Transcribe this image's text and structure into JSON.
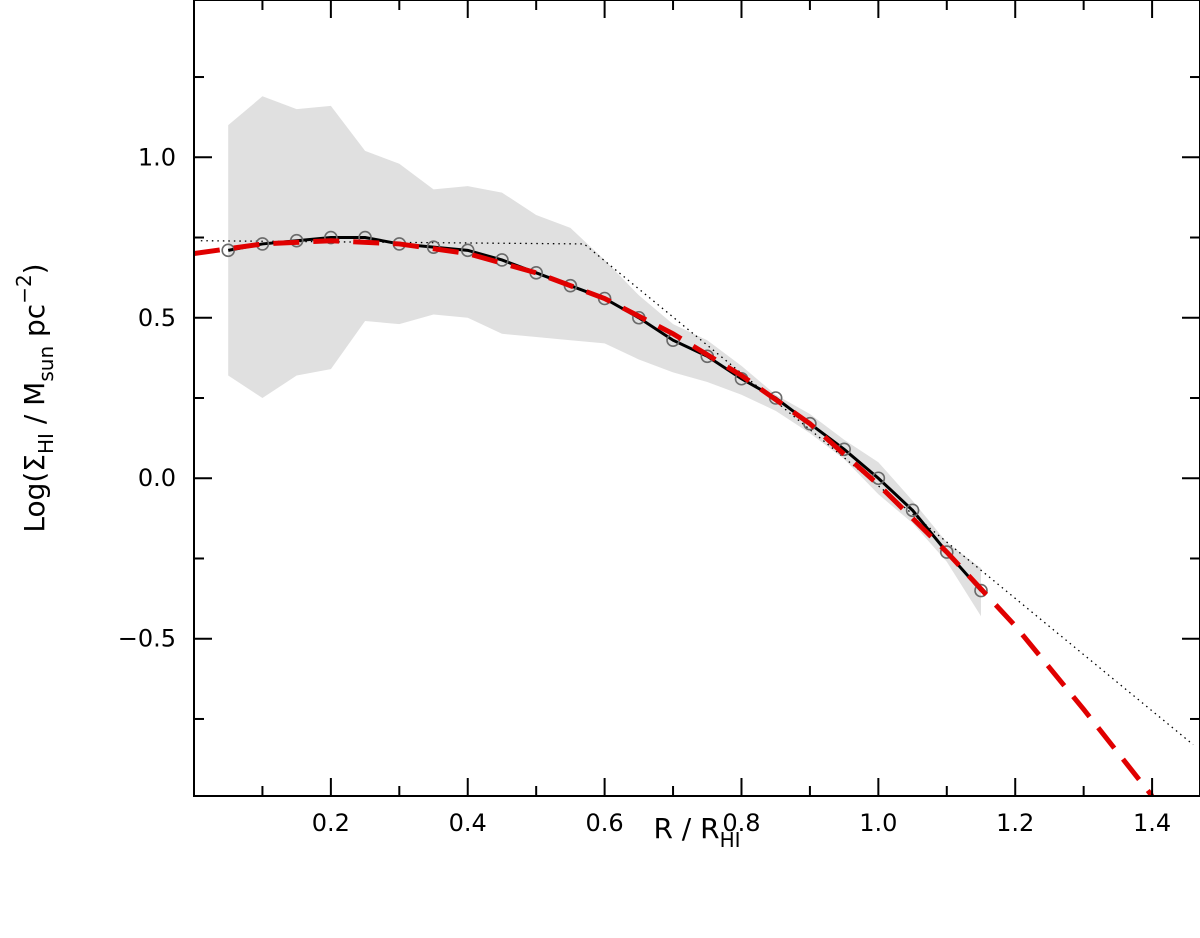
{
  "chart_data": {
    "type": "line",
    "title": "",
    "xlabel": {
      "main": "R / R",
      "sub": "HI"
    },
    "ylabel": {
      "prefix": "Log(Σ",
      "sub1": "HI",
      "mid": " / M",
      "sub2": "sun",
      "suffix": " pc",
      "sup": "−2",
      "end": ")"
    },
    "xlim": [
      0.0,
      1.47
    ],
    "ylim": [
      -0.99,
      1.49
    ],
    "x_ticks": [
      0.2,
      0.4,
      0.6,
      0.8,
      1.0,
      1.2,
      1.4
    ],
    "x_tick_labels": [
      "0.2",
      "0.4",
      "0.6",
      "0.8",
      "1.0",
      "1.2",
      "1.4"
    ],
    "x_minor_ticks": [
      0.1,
      0.3,
      0.5,
      0.7,
      0.9,
      1.1,
      1.3
    ],
    "y_ticks": [
      1.0,
      0.5,
      0.0,
      -0.5
    ],
    "y_tick_labels": [
      "1.0",
      "0.5",
      "0.0",
      "−0.5"
    ],
    "y_minor_ticks": [
      1.25,
      0.75,
      0.25,
      -0.25,
      -0.75
    ],
    "grid": false,
    "colors": {
      "band": "#e0e0e0",
      "median": "#000000",
      "points": "#6a6a6a",
      "fit": "#e00000",
      "dotted": "#000000"
    },
    "series": [
      {
        "style": "shaded-band",
        "x": [
          0.05,
          0.1,
          0.15,
          0.2,
          0.25,
          0.3,
          0.35,
          0.4,
          0.45,
          0.5,
          0.55,
          0.6,
          0.65,
          0.7,
          0.75,
          0.8,
          0.85,
          0.9,
          0.95,
          1.0,
          1.05,
          1.1,
          1.15
        ],
        "upper": [
          1.1,
          1.19,
          1.15,
          1.16,
          1.02,
          0.98,
          0.9,
          0.91,
          0.89,
          0.82,
          0.78,
          0.68,
          0.57,
          0.48,
          0.43,
          0.35,
          0.26,
          0.2,
          0.12,
          0.05,
          -0.07,
          -0.2,
          -0.28
        ],
        "lower": [
          0.32,
          0.25,
          0.32,
          0.34,
          0.49,
          0.48,
          0.51,
          0.5,
          0.45,
          0.44,
          0.43,
          0.42,
          0.37,
          0.33,
          0.3,
          0.26,
          0.21,
          0.14,
          0.06,
          -0.05,
          -0.14,
          -0.26,
          -0.43
        ]
      },
      {
        "style": "line-with-markers",
        "x": [
          0.05,
          0.1,
          0.15,
          0.2,
          0.25,
          0.3,
          0.35,
          0.4,
          0.45,
          0.5,
          0.55,
          0.6,
          0.65,
          0.7,
          0.75,
          0.8,
          0.85,
          0.9,
          0.95,
          1.0,
          1.05,
          1.1,
          1.15
        ],
        "y": [
          0.71,
          0.73,
          0.74,
          0.75,
          0.75,
          0.73,
          0.72,
          0.71,
          0.68,
          0.64,
          0.6,
          0.56,
          0.5,
          0.43,
          0.38,
          0.31,
          0.25,
          0.17,
          0.09,
          0.0,
          -0.1,
          -0.23,
          -0.35
        ]
      },
      {
        "style": "dashed",
        "x": [
          0.0,
          0.1,
          0.2,
          0.3,
          0.4,
          0.5,
          0.6,
          0.7,
          0.8,
          0.9,
          1.0,
          1.1,
          1.2,
          1.3,
          1.4
        ],
        "y": [
          0.7,
          0.73,
          0.74,
          0.73,
          0.7,
          0.64,
          0.56,
          0.45,
          0.32,
          0.17,
          -0.02,
          -0.23,
          -0.46,
          -0.72,
          -0.99
        ]
      },
      {
        "style": "dotted",
        "x": [
          0.01,
          0.57,
          1.46
        ],
        "y": [
          0.74,
          0.73,
          -0.83
        ]
      }
    ]
  }
}
